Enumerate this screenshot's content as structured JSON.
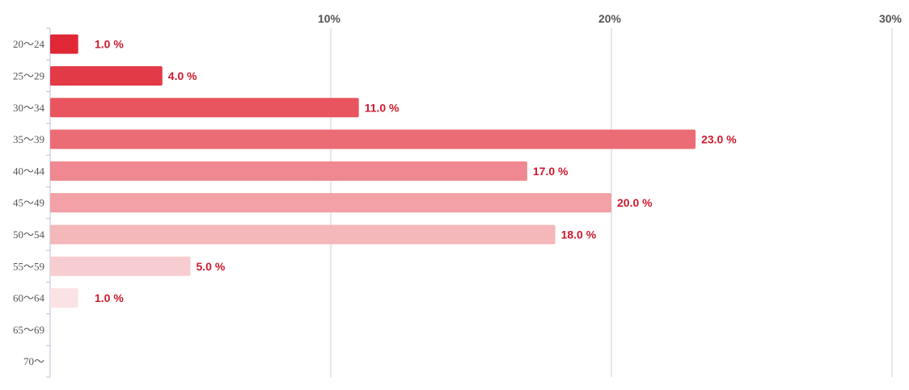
{
  "chart_data": {
    "type": "bar",
    "orientation": "horizontal",
    "title": "",
    "xlabel": "",
    "ylabel": "",
    "xlim": [
      0,
      30
    ],
    "x_ticks": [
      {
        "value": 10,
        "label": "10%"
      },
      {
        "value": 20,
        "label": "20%"
      },
      {
        "value": 30,
        "label": "30%"
      }
    ],
    "grid": true,
    "legend": "none",
    "categories": [
      "20〜24",
      "25〜29",
      "30〜34",
      "35〜39",
      "40〜44",
      "45〜49",
      "50〜54",
      "55〜59",
      "60〜64",
      "65〜69",
      "70〜"
    ],
    "values": [
      1.0,
      4.0,
      11.0,
      23.0,
      17.0,
      20.0,
      18.0,
      5.0,
      1.0,
      null,
      null
    ],
    "data_labels": [
      "1.0 %",
      "4.0 %",
      "11.0 %",
      "23.0 %",
      "17.0 %",
      "20.0 %",
      "18.0 %",
      "5.0 %",
      "1.0 %",
      "",
      ""
    ],
    "colors": [
      "#df2736",
      "#e33a48",
      "#e8555f",
      "#ec6c75",
      "#ef8890",
      "#f2a1a6",
      "#f4b7ba",
      "#f7cdd1",
      "#fbe3e5",
      "#fdf0f1",
      "#fdf0f1"
    ]
  }
}
